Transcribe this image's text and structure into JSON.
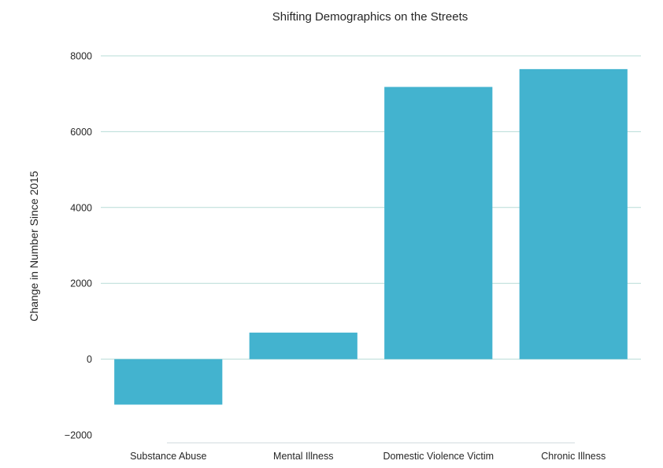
{
  "chart_data": {
    "type": "bar",
    "title": "Shifting Demographics on the Streets",
    "xlabel": "",
    "ylabel": "Change in Number Since 2015",
    "categories": [
      "Substance Abuse",
      "Mental Illness",
      "Domestic Violence Victim",
      "Chronic Illness"
    ],
    "values": [
      -1200,
      700,
      7180,
      7650
    ],
    "ylim": [
      -2000,
      8000
    ],
    "yticks": [
      "−2000",
      "0",
      "2000",
      "4000",
      "6000",
      "8000"
    ],
    "ytick_values": [
      -2000,
      0,
      2000,
      4000,
      6000,
      8000
    ],
    "grid": true,
    "bar_color": "#43b3cf",
    "grid_color": "#b7dcd7"
  }
}
